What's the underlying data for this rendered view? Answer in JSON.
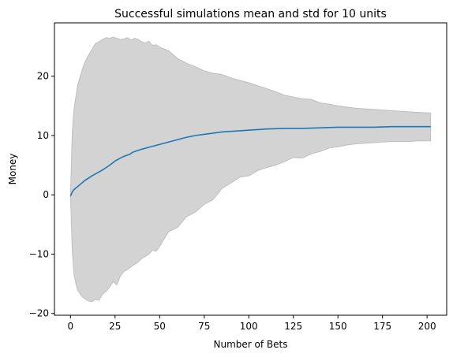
{
  "chart_data": {
    "type": "line",
    "title": "Successful simulations mean and std for 10 units",
    "xlabel": "Number of Bets",
    "ylabel": "Money",
    "xlim": [
      -9,
      211
    ],
    "ylim": [
      -20.3,
      29
    ],
    "xticks": [
      0,
      25,
      50,
      75,
      100,
      125,
      150,
      175,
      200
    ],
    "yticks": [
      -20,
      -10,
      0,
      10,
      20
    ],
    "grid": false,
    "colors": {
      "mean_line": "#1f77b4",
      "std_band": "#d3d3d3",
      "std_band_edge": "#bfbfbf"
    },
    "series": [
      {
        "kind": "band",
        "x": [
          0,
          1,
          2,
          3,
          4,
          5,
          6,
          7,
          8,
          10,
          12,
          14,
          16,
          18,
          20,
          22,
          24,
          26,
          28,
          30,
          32,
          34,
          36,
          38,
          40,
          42,
          44,
          46,
          48,
          50,
          55,
          60,
          65,
          70,
          75,
          80,
          85,
          90,
          95,
          100,
          105,
          110,
          115,
          120,
          125,
          130,
          135,
          140,
          145,
          150,
          155,
          160,
          165,
          170,
          175,
          180,
          185,
          190,
          195,
          202
        ],
        "upper": [
          0,
          10.5,
          14.5,
          16.5,
          18.5,
          19.5,
          20.5,
          21.5,
          22.3,
          23.5,
          24.5,
          25.5,
          25.8,
          26.2,
          26.5,
          26.4,
          26.6,
          26.4,
          26.2,
          26.3,
          26.5,
          26.1,
          26.4,
          26.2,
          25.8,
          25.6,
          25.9,
          25.2,
          25.3,
          24.9,
          24.3,
          23.0,
          22.2,
          21.6,
          20.9,
          20.5,
          20.3,
          19.7,
          19.3,
          18.9,
          18.4,
          17.9,
          17.4,
          16.8,
          16.5,
          16.2,
          16.1,
          15.5,
          15.3,
          15.0,
          14.8,
          14.6,
          14.5,
          14.4,
          14.3,
          14.2,
          14.1,
          14.0,
          13.9,
          13.8
        ],
        "lower": [
          0,
          -9.5,
          -13.5,
          -15.0,
          -16.0,
          -16.5,
          -17.0,
          -17.3,
          -17.5,
          -17.9,
          -18.0,
          -17.6,
          -17.8,
          -16.7,
          -16.3,
          -15.5,
          -14.6,
          -15.2,
          -13.7,
          -12.9,
          -12.6,
          -12.1,
          -11.7,
          -11.3,
          -10.7,
          -10.4,
          -10.0,
          -9.3,
          -9.5,
          -8.7,
          -6.2,
          -5.5,
          -3.7,
          -2.9,
          -1.6,
          -0.8,
          1.1,
          2.0,
          3.0,
          3.2,
          4.1,
          4.6,
          5.0,
          5.6,
          6.3,
          6.2,
          6.9,
          7.3,
          7.9,
          8.1,
          8.4,
          8.6,
          8.7,
          8.8,
          8.9,
          9.0,
          9.0,
          9.0,
          9.1,
          9.1
        ]
      },
      {
        "kind": "line",
        "x": [
          0,
          1,
          2,
          4,
          6,
          8,
          10,
          12,
          15,
          18,
          20,
          22,
          25,
          28,
          30,
          33,
          35,
          38,
          40,
          45,
          50,
          55,
          60,
          65,
          70,
          75,
          80,
          85,
          90,
          95,
          100,
          110,
          120,
          130,
          140,
          150,
          160,
          170,
          180,
          190,
          202
        ],
        "y": [
          -0.2,
          0.5,
          0.9,
          1.4,
          1.9,
          2.4,
          2.8,
          3.2,
          3.7,
          4.2,
          4.6,
          5.0,
          5.7,
          6.2,
          6.5,
          6.8,
          7.2,
          7.5,
          7.7,
          8.1,
          8.5,
          8.9,
          9.3,
          9.7,
          10.0,
          10.2,
          10.4,
          10.6,
          10.7,
          10.8,
          10.9,
          11.1,
          11.2,
          11.2,
          11.3,
          11.4,
          11.4,
          11.4,
          11.5,
          11.5,
          11.5
        ]
      }
    ]
  }
}
